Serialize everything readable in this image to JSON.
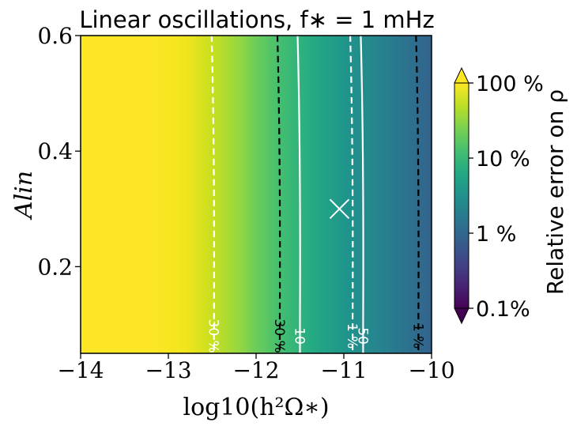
{
  "chart_data": {
    "type": "heatmap",
    "title": "Linear oscillations, f∗ = 1 mHz",
    "xlabel": "log10(h²Ω∗)",
    "ylabel": "Alin",
    "xlim": [
      -14,
      -10
    ],
    "ylim": [
      0.05,
      0.6
    ],
    "x_ticks": [
      {
        "value": -14,
        "label": "−14"
      },
      {
        "value": -13,
        "label": "−13"
      },
      {
        "value": -12,
        "label": "−12"
      },
      {
        "value": -11,
        "label": "−11"
      },
      {
        "value": -10,
        "label": "−10"
      }
    ],
    "y_ticks": [
      {
        "value": 0.2,
        "label": "0.2"
      },
      {
        "value": 0.4,
        "label": "0.4"
      },
      {
        "value": 0.6,
        "label": "0.6"
      }
    ],
    "heatmap_profile": {
      "description_x": [
        -14,
        -12.8,
        -12.5,
        -12.2,
        -11.75,
        -11.5,
        -11.0,
        -10.8,
        -10.5,
        -10.15,
        -10.0
      ],
      "relative_error_percent": [
        100,
        100,
        90,
        55,
        30,
        10,
        3,
        1.8,
        1.3,
        1.0,
        0.9
      ]
    },
    "contours": [
      {
        "value_label": "30 %",
        "x": -12.48,
        "color": "#ffffff",
        "style": "dashed"
      },
      {
        "value_label": "30 %",
        "x": -11.73,
        "color": "#000000",
        "style": "dashed"
      },
      {
        "value_label": "10",
        "x": -11.5,
        "color": "#ffffff",
        "style": "solid"
      },
      {
        "value_label": "1 %",
        "x": -10.9,
        "color": "#ffffff",
        "style": "dashed"
      },
      {
        "value_label": "50",
        "x": -10.78,
        "color": "#ffffff",
        "style": "solid"
      },
      {
        "value_label": "1 %",
        "x": -10.15,
        "color": "#000000",
        "style": "dashed"
      }
    ],
    "marker": {
      "x": -11.05,
      "y": 0.3,
      "symbol": "x",
      "color": "#ffffff"
    },
    "colorbar": {
      "label": "Relative error on ρ",
      "scale": "log",
      "range_percent": [
        0.1,
        100
      ],
      "ticks": [
        {
          "value": 100,
          "label": "100 %"
        },
        {
          "value": 10,
          "label": "10 %"
        },
        {
          "value": 1,
          "label": "1 %"
        },
        {
          "value": 0.1,
          "label": "0.1%"
        }
      ],
      "extend": "both",
      "colormap": "viridis"
    },
    "grid": false
  }
}
